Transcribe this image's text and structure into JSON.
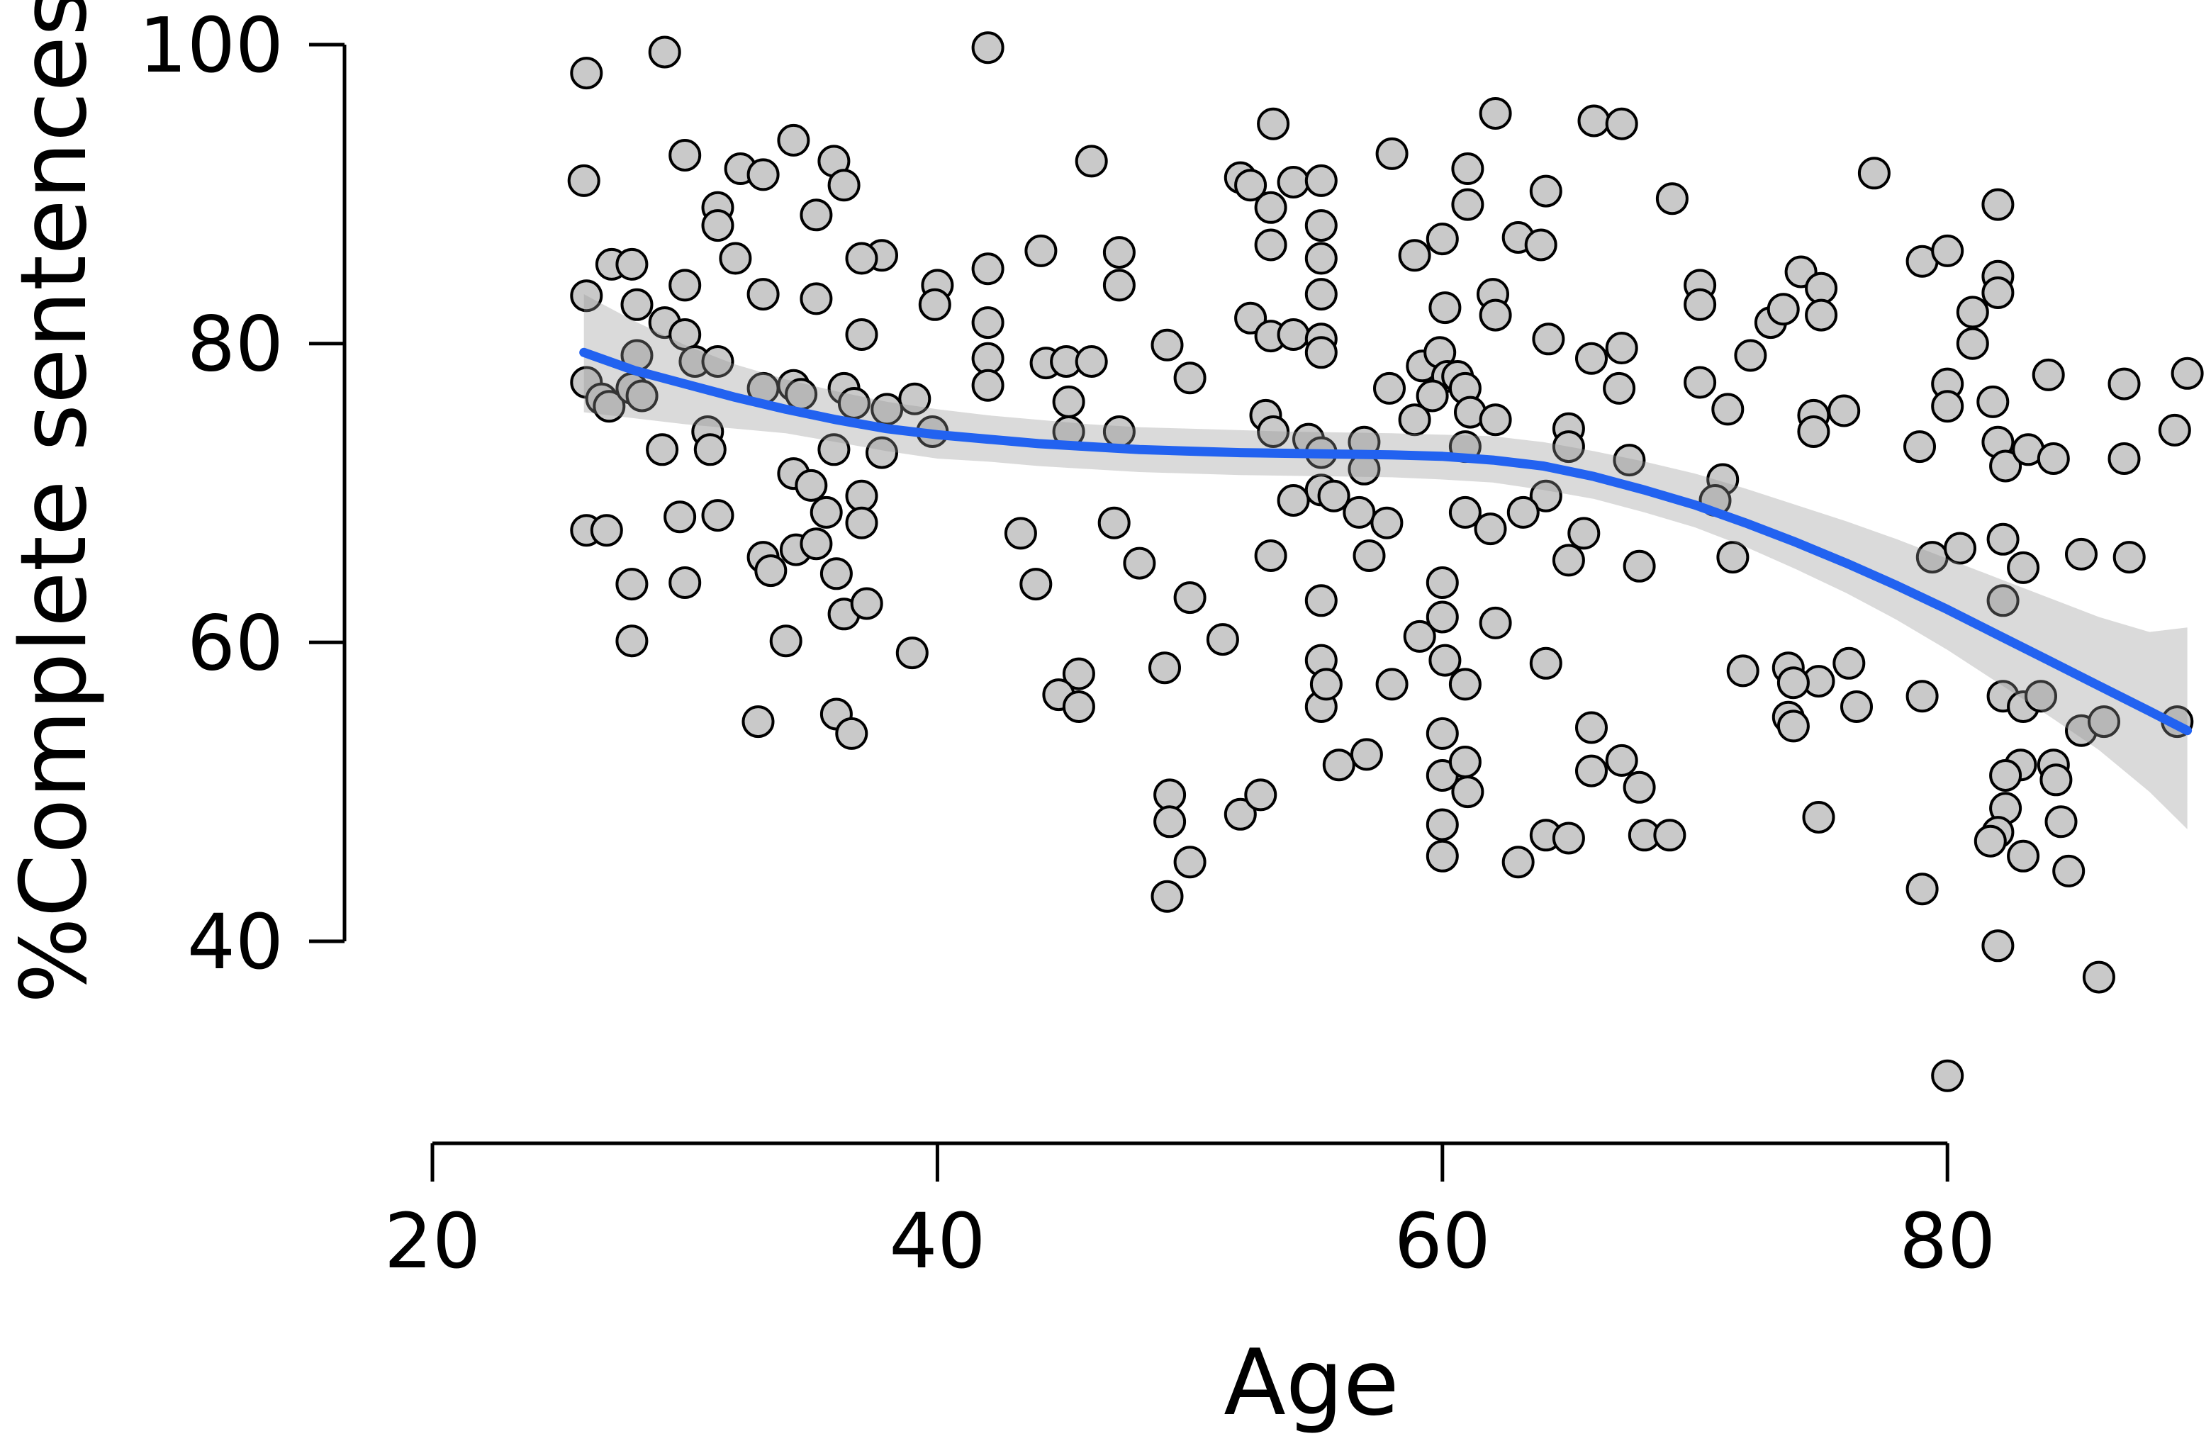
{
  "chart_data": {
    "type": "scatter",
    "title": "",
    "xlabel": "Age",
    "ylabel": "%Complete sentences",
    "legend": "none",
    "grid": "off",
    "background": "#ffffff",
    "axis_color": "#000000",
    "x_ticks": [
      20,
      40,
      60,
      80
    ],
    "y_ticks": [
      40,
      60,
      80,
      100
    ],
    "xlim": [
      16.5,
      90.5
    ],
    "ylim": [
      26.5,
      101
    ],
    "marker": {
      "shape": "circle",
      "fill": "#c9c9c9",
      "stroke": "#000000"
    },
    "smooth_color": "#2262f0",
    "band_color_rgba": [
      150,
      150,
      150,
      0.35
    ],
    "points": [
      [
        29.2,
        99.5
      ],
      [
        26.1,
        98.1
      ],
      [
        26.0,
        90.9
      ],
      [
        30.0,
        92.6
      ],
      [
        32.2,
        91.7
      ],
      [
        33.1,
        91.3
      ],
      [
        34.3,
        93.6
      ],
      [
        35.9,
        92.2
      ],
      [
        36.3,
        90.6
      ],
      [
        35.2,
        88.6
      ],
      [
        31.3,
        89.1
      ],
      [
        31.3,
        87.9
      ],
      [
        27.1,
        85.3
      ],
      [
        27.9,
        85.3
      ],
      [
        26.1,
        83.2
      ],
      [
        28.1,
        82.6
      ],
      [
        30.0,
        83.9
      ],
      [
        32.0,
        85.7
      ],
      [
        33.1,
        83.3
      ],
      [
        35.2,
        83.0
      ],
      [
        29.2,
        81.4
      ],
      [
        30.0,
        80.6
      ],
      [
        28.1,
        79.2
      ],
      [
        30.4,
        78.8
      ],
      [
        31.3,
        78.8
      ],
      [
        26.1,
        77.4
      ],
      [
        26.7,
        76.3
      ],
      [
        27.0,
        75.8
      ],
      [
        27.9,
        77.0
      ],
      [
        28.3,
        76.5
      ],
      [
        33.1,
        77.0
      ],
      [
        34.3,
        77.2
      ],
      [
        34.6,
        76.6
      ],
      [
        36.3,
        77.0
      ],
      [
        36.7,
        76.0
      ],
      [
        29.1,
        72.9
      ],
      [
        30.9,
        74.1
      ],
      [
        31.0,
        72.9
      ],
      [
        29.8,
        68.4
      ],
      [
        31.3,
        68.5
      ],
      [
        26.1,
        67.5
      ],
      [
        26.9,
        67.5
      ],
      [
        35.9,
        72.9
      ],
      [
        34.3,
        71.3
      ],
      [
        35.0,
        70.5
      ],
      [
        35.6,
        68.7
      ],
      [
        27.9,
        63.9
      ],
      [
        30.0,
        64.0
      ],
      [
        27.9,
        60.1
      ],
      [
        33.1,
        65.7
      ],
      [
        33.4,
        64.8
      ],
      [
        34.4,
        66.2
      ],
      [
        35.2,
        66.6
      ],
      [
        36.0,
        64.6
      ],
      [
        36.3,
        61.9
      ],
      [
        34.0,
        60.1
      ],
      [
        32.9,
        54.7
      ],
      [
        36.0,
        55.2
      ],
      [
        36.6,
        53.9
      ],
      [
        42.0,
        99.8
      ],
      [
        53.3,
        94.7
      ],
      [
        46.1,
        92.2
      ],
      [
        52.0,
        91.1
      ],
      [
        52.4,
        90.6
      ],
      [
        53.2,
        89.1
      ],
      [
        54.1,
        90.8
      ],
      [
        55.2,
        90.9
      ],
      [
        53.2,
        86.6
      ],
      [
        55.2,
        87.9
      ],
      [
        37.8,
        85.9
      ],
      [
        37.0,
        85.7
      ],
      [
        40.0,
        83.9
      ],
      [
        39.9,
        82.6
      ],
      [
        42.0,
        85.0
      ],
      [
        44.1,
        86.2
      ],
      [
        47.2,
        86.1
      ],
      [
        47.2,
        83.9
      ],
      [
        55.2,
        85.7
      ],
      [
        55.2,
        83.3
      ],
      [
        42.0,
        81.4
      ],
      [
        42.0,
        79.0
      ],
      [
        42.0,
        77.2
      ],
      [
        44.3,
        78.7
      ],
      [
        45.1,
        78.8
      ],
      [
        46.1,
        78.8
      ],
      [
        49.1,
        79.9
      ],
      [
        50.0,
        77.7
      ],
      [
        52.4,
        81.7
      ],
      [
        53.2,
        80.5
      ],
      [
        54.1,
        80.6
      ],
      [
        55.2,
        80.3
      ],
      [
        55.2,
        79.4
      ],
      [
        37.0,
        80.6
      ],
      [
        39.1,
        76.3
      ],
      [
        38.0,
        75.6
      ],
      [
        39.8,
        74.1
      ],
      [
        45.2,
        76.1
      ],
      [
        45.2,
        74.1
      ],
      [
        47.2,
        74.1
      ],
      [
        37.8,
        72.7
      ],
      [
        53.0,
        75.2
      ],
      [
        53.3,
        74.1
      ],
      [
        54.7,
        73.6
      ],
      [
        55.2,
        72.7
      ],
      [
        37.0,
        69.8
      ],
      [
        37.0,
        68.0
      ],
      [
        47.0,
        68.0
      ],
      [
        43.3,
        67.3
      ],
      [
        54.1,
        69.5
      ],
      [
        55.2,
        70.2
      ],
      [
        43.9,
        63.9
      ],
      [
        48.0,
        65.3
      ],
      [
        50.0,
        63.0
      ],
      [
        51.3,
        60.2
      ],
      [
        53.2,
        65.8
      ],
      [
        55.2,
        62.8
      ],
      [
        39.0,
        59.3
      ],
      [
        49.0,
        58.3
      ],
      [
        45.6,
        57.9
      ],
      [
        44.8,
        56.5
      ],
      [
        45.6,
        55.7
      ],
      [
        55.2,
        58.8
      ],
      [
        55.2,
        55.7
      ],
      [
        37.2,
        62.6
      ],
      [
        49.2,
        49.8
      ],
      [
        49.2,
        48.0
      ],
      [
        50.0,
        45.3
      ],
      [
        49.1,
        43.0
      ],
      [
        52.0,
        48.5
      ],
      [
        52.8,
        49.8
      ],
      [
        62.1,
        95.4
      ],
      [
        66.0,
        94.9
      ],
      [
        67.1,
        94.7
      ],
      [
        58.0,
        92.7
      ],
      [
        61.0,
        91.7
      ],
      [
        61.0,
        89.3
      ],
      [
        64.1,
        90.2
      ],
      [
        69.1,
        89.7
      ],
      [
        60.0,
        87.0
      ],
      [
        58.9,
        85.9
      ],
      [
        63.0,
        87.1
      ],
      [
        63.9,
        86.6
      ],
      [
        70.2,
        83.9
      ],
      [
        70.2,
        82.6
      ],
      [
        60.1,
        82.4
      ],
      [
        62.0,
        83.3
      ],
      [
        62.1,
        81.9
      ],
      [
        64.2,
        80.3
      ],
      [
        67.1,
        79.7
      ],
      [
        65.9,
        79.0
      ],
      [
        67.0,
        77.0
      ],
      [
        59.2,
        78.5
      ],
      [
        59.9,
        79.4
      ],
      [
        60.2,
        77.8
      ],
      [
        59.6,
        76.5
      ],
      [
        60.6,
        77.8
      ],
      [
        57.9,
        77.0
      ],
      [
        58.9,
        74.9
      ],
      [
        60.9,
        77.0
      ],
      [
        61.1,
        75.4
      ],
      [
        62.1,
        74.9
      ],
      [
        65.0,
        74.3
      ],
      [
        60.9,
        73.1
      ],
      [
        56.9,
        73.4
      ],
      [
        56.9,
        71.6
      ],
      [
        65.0,
        73.1
      ],
      [
        67.4,
        72.2
      ],
      [
        73.0,
        81.4
      ],
      [
        73.5,
        82.3
      ],
      [
        72.2,
        79.2
      ],
      [
        70.2,
        77.4
      ],
      [
        71.3,
        75.6
      ],
      [
        55.7,
        69.8
      ],
      [
        56.7,
        68.7
      ],
      [
        57.8,
        68.0
      ],
      [
        60.9,
        68.7
      ],
      [
        61.9,
        67.6
      ],
      [
        64.1,
        69.8
      ],
      [
        63.2,
        68.7
      ],
      [
        65.6,
        67.3
      ],
      [
        71.1,
        70.9
      ],
      [
        70.8,
        69.5
      ],
      [
        57.1,
        65.8
      ],
      [
        60.0,
        64.0
      ],
      [
        60.0,
        61.7
      ],
      [
        59.1,
        60.4
      ],
      [
        60.1,
        58.8
      ],
      [
        60.9,
        57.2
      ],
      [
        62.1,
        61.3
      ],
      [
        58.0,
        57.2
      ],
      [
        65.0,
        65.5
      ],
      [
        67.8,
        65.1
      ],
      [
        64.1,
        58.6
      ],
      [
        55.4,
        57.2
      ],
      [
        55.9,
        51.8
      ],
      [
        57.0,
        52.5
      ],
      [
        60.0,
        53.9
      ],
      [
        60.0,
        51.1
      ],
      [
        60.0,
        47.8
      ],
      [
        60.0,
        45.7
      ],
      [
        60.9,
        52.0
      ],
      [
        61.0,
        50.0
      ],
      [
        65.9,
        54.3
      ],
      [
        65.9,
        51.4
      ],
      [
        67.1,
        52.1
      ],
      [
        67.8,
        50.3
      ],
      [
        64.1,
        47.1
      ],
      [
        65.0,
        46.9
      ],
      [
        63.0,
        45.3
      ],
      [
        68.0,
        47.1
      ],
      [
        69.0,
        47.1
      ],
      [
        71.5,
        65.7
      ],
      [
        71.9,
        58.1
      ],
      [
        73.7,
        58.3
      ],
      [
        73.7,
        55.0
      ],
      [
        77.1,
        91.4
      ],
      [
        82.0,
        89.3
      ],
      [
        79.0,
        85.5
      ],
      [
        80.0,
        86.2
      ],
      [
        82.0,
        84.5
      ],
      [
        82.0,
        83.4
      ],
      [
        81.0,
        82.1
      ],
      [
        81.0,
        80.0
      ],
      [
        74.2,
        84.8
      ],
      [
        75.0,
        83.7
      ],
      [
        75.0,
        81.9
      ],
      [
        84.0,
        77.9
      ],
      [
        87.0,
        77.3
      ],
      [
        80.0,
        77.3
      ],
      [
        80.0,
        75.8
      ],
      [
        81.8,
        76.1
      ],
      [
        74.7,
        75.2
      ],
      [
        75.9,
        75.5
      ],
      [
        74.7,
        74.1
      ],
      [
        78.9,
        73.1
      ],
      [
        82.0,
        73.4
      ],
      [
        82.3,
        71.8
      ],
      [
        83.2,
        72.9
      ],
      [
        84.2,
        72.3
      ],
      [
        87.0,
        72.3
      ],
      [
        89.0,
        74.2
      ],
      [
        89.5,
        78.0
      ],
      [
        79.4,
        65.7
      ],
      [
        80.5,
        66.3
      ],
      [
        82.2,
        66.9
      ],
      [
        83.0,
        65.0
      ],
      [
        85.3,
        65.9
      ],
      [
        87.2,
        65.7
      ],
      [
        82.2,
        62.8
      ],
      [
        76.1,
        58.6
      ],
      [
        74.9,
        57.4
      ],
      [
        76.4,
        55.7
      ],
      [
        73.9,
        57.3
      ],
      [
        73.9,
        54.4
      ],
      [
        79.0,
        56.4
      ],
      [
        82.2,
        56.4
      ],
      [
        83.0,
        55.7
      ],
      [
        83.7,
        56.4
      ],
      [
        82.9,
        51.8
      ],
      [
        84.2,
        51.8
      ],
      [
        85.3,
        54.1
      ],
      [
        86.2,
        54.7
      ],
      [
        89.1,
        54.7
      ],
      [
        84.3,
        50.8
      ],
      [
        82.3,
        51.1
      ],
      [
        82.3,
        48.9
      ],
      [
        82.0,
        47.3
      ],
      [
        81.7,
        46.7
      ],
      [
        83.0,
        45.7
      ],
      [
        84.5,
        48.0
      ],
      [
        84.8,
        44.7
      ],
      [
        74.9,
        48.3
      ],
      [
        79.0,
        43.5
      ],
      [
        82.0,
        39.7
      ],
      [
        86.0,
        37.6
      ],
      [
        80.0,
        31.0
      ]
    ],
    "smooth_line": {
      "x": [
        26,
        28,
        30,
        32,
        34,
        36,
        38,
        40,
        42,
        44,
        46,
        48,
        50,
        52,
        54,
        56,
        58,
        60,
        62,
        64,
        66,
        68,
        70,
        72,
        74,
        76,
        78,
        80,
        82,
        84,
        86,
        88,
        89.5
      ],
      "y": [
        79.4,
        78.2,
        77.3,
        76.4,
        75.6,
        74.9,
        74.3,
        73.9,
        73.6,
        73.3,
        73.1,
        72.9,
        72.8,
        72.7,
        72.65,
        72.6,
        72.55,
        72.45,
        72.2,
        71.8,
        71.1,
        70.2,
        69.2,
        68.0,
        66.7,
        65.3,
        63.8,
        62.2,
        60.5,
        58.8,
        57.1,
        55.4,
        54.1
      ]
    },
    "ci_band": {
      "x": [
        26,
        28,
        30,
        32,
        34,
        36,
        38,
        40,
        42,
        44,
        46,
        48,
        50,
        52,
        54,
        56,
        58,
        60,
        62,
        64,
        66,
        68,
        70,
        72,
        74,
        76,
        78,
        80,
        82,
        84,
        86,
        88,
        89.5
      ],
      "upper": [
        83.3,
        81.5,
        79.9,
        78.6,
        77.6,
        76.8,
        76.1,
        75.6,
        75.2,
        74.9,
        74.6,
        74.4,
        74.3,
        74.2,
        74.1,
        74.05,
        74.0,
        73.9,
        73.8,
        73.4,
        72.8,
        72.1,
        71.3,
        70.3,
        69.2,
        68.1,
        66.9,
        65.6,
        64.3,
        63.0,
        61.7,
        60.7,
        61.0
      ],
      "lower": [
        75.4,
        75.0,
        74.6,
        74.3,
        74.0,
        73.4,
        72.8,
        72.3,
        72.1,
        71.8,
        71.6,
        71.4,
        71.3,
        71.2,
        71.15,
        71.1,
        71.05,
        70.9,
        70.7,
        70.2,
        69.6,
        68.7,
        67.7,
        66.4,
        64.9,
        63.3,
        61.5,
        59.5,
        57.3,
        55.1,
        52.8,
        50.0,
        47.5
      ]
    }
  }
}
